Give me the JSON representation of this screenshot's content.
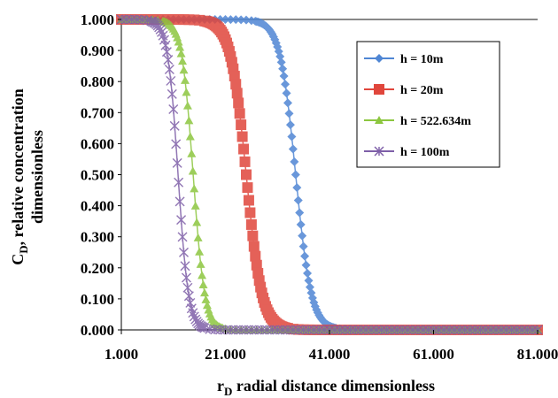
{
  "chart_data": {
    "type": "scatter",
    "title": "",
    "xlabel": {
      "main": "r",
      "sub": "D",
      "rest": " radial distance dimensionless"
    },
    "ylabel": {
      "line1_main": "C",
      "line1_sub": "D",
      "line1_rest": ", relative concentration",
      "line2": "dimensionless"
    },
    "xlim": [
      1.0,
      81.0
    ],
    "ylim": [
      0.0,
      1.0
    ],
    "x_ticks": [
      1.0,
      21.0,
      41.0,
      61.0,
      81.0
    ],
    "x_tick_labels": [
      "1.000",
      "21.000",
      "41.000",
      "61.000",
      "81.000"
    ],
    "y_ticks": [
      0,
      0.1,
      0.2,
      0.3,
      0.4,
      0.5,
      0.6,
      0.7,
      0.8,
      0.9,
      1.0
    ],
    "y_tick_labels": [
      "0.000",
      "0.100",
      "0.200",
      "0.300",
      "0.400",
      "0.500",
      "0.600",
      "0.700",
      "0.800",
      "0.900",
      "1.000"
    ],
    "grid": {
      "horizontal_top_line": true
    },
    "legend_position": "top-right",
    "series": [
      {
        "name": "h = 10m",
        "color": "#4f86d4",
        "marker": "diamond",
        "midpoint": 34.5,
        "width": 1.5,
        "x_end": 81.0
      },
      {
        "name": "h = 20m",
        "color": "#e0463c",
        "marker": "square",
        "midpoint": 25.0,
        "width": 1.5,
        "x_end": 81.0
      },
      {
        "name": "h = 522.634m",
        "color": "#8cc63f",
        "marker": "triangle",
        "midpoint": 14.8,
        "width": 1.1,
        "x_end": 81.0
      },
      {
        "name": "h = 100m",
        "color": "#7e5fa8",
        "marker": "x-star",
        "midpoint": 11.9,
        "width": 1.0,
        "x_end": 81.0
      }
    ],
    "x_sample_step": 0.25
  }
}
